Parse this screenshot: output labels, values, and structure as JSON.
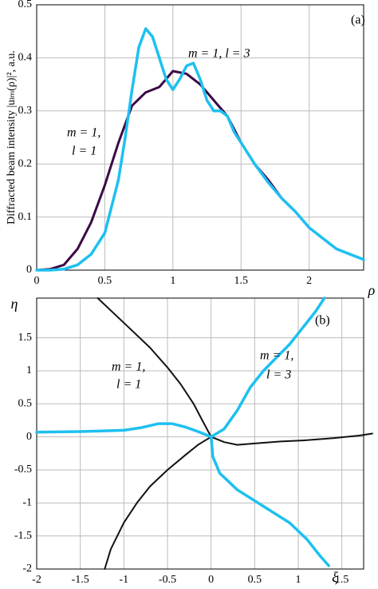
{
  "chart_data": [
    {
      "type": "line",
      "xlabel": "ρ",
      "ylabel": "Diffracted beam intensity |uₗₘ(ρ)|², a.u.",
      "annotations": [
        "(a)",
        "m = 1, l = 3",
        "m = 1,",
        "l = 1"
      ],
      "xlim": [
        0,
        2.4
      ],
      "ylim": [
        0,
        0.5
      ],
      "xticks": [
        0,
        0.5,
        1,
        1.5,
        2
      ],
      "yticks": [
        0,
        0.1,
        0.2,
        0.3,
        0.4,
        0.5
      ],
      "grid": true,
      "series": [
        {
          "color": "#3b0a45",
          "x": [
            0,
            0.1,
            0.2,
            0.3,
            0.4,
            0.5,
            0.6,
            0.7,
            0.8,
            0.9,
            1.0,
            1.1,
            1.2,
            1.3,
            1.4,
            1.5,
            1.6,
            1.7,
            1.8,
            1.9,
            2.0,
            2.1,
            2.2,
            2.3,
            2.4
          ],
          "values": [
            0,
            0.002,
            0.01,
            0.04,
            0.09,
            0.16,
            0.24,
            0.31,
            0.335,
            0.345,
            0.375,
            0.37,
            0.35,
            0.32,
            0.29,
            0.24,
            0.2,
            0.17,
            0.135,
            0.11,
            0.08,
            0.06,
            0.04,
            0.03,
            0.02
          ]
        },
        {
          "color": "#1ec0f0",
          "x": [
            0,
            0.1,
            0.2,
            0.3,
            0.4,
            0.5,
            0.6,
            0.65,
            0.7,
            0.75,
            0.8,
            0.85,
            0.9,
            0.95,
            1.0,
            1.05,
            1.1,
            1.15,
            1.2,
            1.25,
            1.3,
            1.35,
            1.4,
            1.45,
            1.5,
            1.6,
            1.7,
            1.8,
            1.9,
            2.0,
            2.1,
            2.2,
            2.3,
            2.4
          ],
          "values": [
            0,
            0,
            0.002,
            0.01,
            0.03,
            0.07,
            0.17,
            0.25,
            0.34,
            0.42,
            0.455,
            0.44,
            0.4,
            0.36,
            0.34,
            0.36,
            0.385,
            0.39,
            0.36,
            0.32,
            0.3,
            0.3,
            0.29,
            0.26,
            0.24,
            0.2,
            0.165,
            0.135,
            0.11,
            0.08,
            0.06,
            0.04,
            0.03,
            0.02
          ]
        }
      ]
    },
    {
      "type": "line",
      "xlabel": "ξ",
      "ylabel": "η",
      "annotations": [
        "(b)",
        "m = 1,",
        "l = 1",
        "m = 1,",
        "l = 3"
      ],
      "xlim": [
        -2,
        1.75
      ],
      "ylim": [
        -2,
        2.1
      ],
      "xticks": [
        -2,
        -1.5,
        -1,
        -0.5,
        0,
        0.5,
        1,
        1.5
      ],
      "yticks": [
        -2,
        -1.5,
        -1,
        -0.5,
        0,
        0.5,
        1,
        1.5
      ],
      "grid": true,
      "series": [
        {
          "color": "#111111",
          "x": [
            -1.3,
            -1.1,
            -0.9,
            -0.7,
            -0.5,
            -0.35,
            -0.2,
            -0.1,
            0
          ],
          "values": [
            2.1,
            1.85,
            1.6,
            1.35,
            1.05,
            0.8,
            0.5,
            0.25,
            0
          ]
        },
        {
          "color": "#111111",
          "x": [
            -1.22,
            -1.15,
            -1.0,
            -0.85,
            -0.7,
            -0.5,
            -0.3,
            -0.15,
            0
          ],
          "values": [
            -2,
            -1.7,
            -1.3,
            -1.0,
            -0.75,
            -0.5,
            -0.28,
            -0.12,
            0
          ]
        },
        {
          "color": "#111111",
          "x": [
            0,
            0.15,
            0.3,
            0.5,
            0.8,
            1.1,
            1.4,
            1.7,
            1.85
          ],
          "values": [
            0,
            -0.08,
            -0.12,
            -0.1,
            -0.07,
            -0.05,
            -0.02,
            0.02,
            0.05
          ]
        },
        {
          "color": "#1ec0f0",
          "x": [
            0,
            0.15,
            0.3,
            0.45,
            0.6,
            0.75,
            0.9,
            1.05,
            1.2,
            1.3
          ],
          "values": [
            0,
            0.12,
            0.4,
            0.75,
            1.0,
            1.2,
            1.4,
            1.65,
            1.9,
            2.1
          ]
        },
        {
          "color": "#1ec0f0",
          "x": [
            0,
            0.02,
            0.1,
            0.3,
            0.6,
            0.9,
            1.1,
            1.25,
            1.35
          ],
          "values": [
            0,
            -0.3,
            -0.55,
            -0.8,
            -1.05,
            -1.3,
            -1.55,
            -1.8,
            -1.95
          ]
        },
        {
          "color": "#1ec0f0",
          "x": [
            -2,
            -1.5,
            -1.0,
            -0.8,
            -0.6,
            -0.45,
            -0.3,
            -0.15,
            0
          ],
          "values": [
            0.07,
            0.08,
            0.1,
            0.14,
            0.2,
            0.2,
            0.15,
            0.08,
            0
          ]
        }
      ]
    }
  ]
}
